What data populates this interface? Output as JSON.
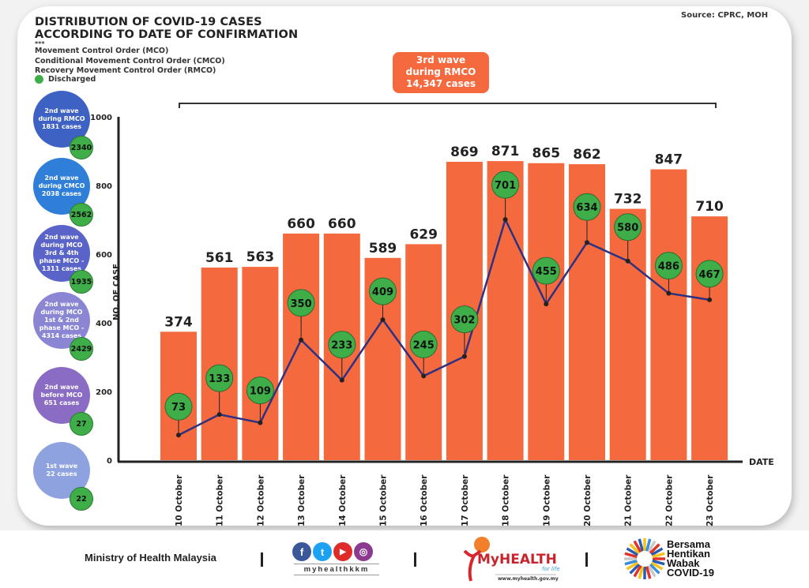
{
  "header": {
    "title_line1": "DISTRIBUTION OF COVID-19 CASES",
    "title_line2": "ACCORDING TO DATE OF CONFIRMATION",
    "stars": "***",
    "legend_lines": [
      "Movement Control Order (MCO)",
      "Conditional Movement Control Order (CMCO)",
      "Recovery Movement Control Order (RMCO)"
    ],
    "discharged_label": "Discharged",
    "source": "Source: CPRC, MOH"
  },
  "colors": {
    "bar": "#f46a3e",
    "discharged": "#3fae49",
    "line": "#2e3180",
    "axis": "#222222"
  },
  "wave_box": {
    "line1": "3rd wave",
    "line2": "during RMCO",
    "line3": "14,347 cases"
  },
  "side_bubbles": [
    {
      "lines": [
        "2nd wave",
        "during RMCO",
        "1831 cases"
      ],
      "discharged": "2340",
      "color": "#3d62c4"
    },
    {
      "lines": [
        "2nd wave",
        "during CMCO",
        "2038 cases"
      ],
      "discharged": "2562",
      "color": "#2f7fd8"
    },
    {
      "lines": [
        "2nd wave",
        "during MCO",
        "3rd & 4th",
        "phase MCO -",
        "1311 cases"
      ],
      "discharged": "1935",
      "color": "#5a64c8"
    },
    {
      "lines": [
        "2nd wave",
        "during MCO",
        "1st & 2nd",
        "phase MCO -",
        "4314 cases"
      ],
      "discharged": "2429",
      "color": "#8a86d4"
    },
    {
      "lines": [
        "2nd wave",
        "before MCO",
        "651 cases"
      ],
      "discharged": "27",
      "color": "#8a6cc4"
    },
    {
      "lines": [
        "1st wave",
        "22 cases"
      ],
      "discharged": "22",
      "color": "#8ea2e0"
    }
  ],
  "chart_data": {
    "type": "bar",
    "title": "DISTRIBUTION OF COVID-19 CASES ACCORDING TO DATE OF CONFIRMATION",
    "xlabel": "DATE",
    "ylabel": "NO. OF CASE",
    "ylim": [
      0,
      1000
    ],
    "yticks": [
      0,
      200,
      400,
      600,
      800,
      1000
    ],
    "categories": [
      "10 October",
      "11 October",
      "12 October",
      "13 October",
      "14 October",
      "15 October",
      "16 October",
      "17 October",
      "18 October",
      "19 October",
      "20 October",
      "21 October",
      "22 October",
      "23 October"
    ],
    "series": [
      {
        "name": "Cases",
        "type": "bar",
        "values": [
          374,
          561,
          563,
          660,
          660,
          589,
          629,
          869,
          871,
          865,
          862,
          732,
          847,
          710
        ]
      },
      {
        "name": "Discharged",
        "type": "line",
        "values": [
          73,
          133,
          109,
          350,
          233,
          409,
          245,
          302,
          701,
          455,
          634,
          580,
          486,
          467
        ]
      }
    ],
    "grid": false,
    "legend": "top-left"
  },
  "footer": {
    "ministry": "Ministry of Health Malaysia",
    "social_handle": "myhealthkkm",
    "social_icons": [
      "f",
      "t",
      "▶",
      "◎"
    ],
    "myhealth_brand": "MyHEALTH",
    "myhealth_tagline": "for life",
    "myhealth_url": "www.myhealth.gov.my",
    "bersama_lines": [
      "Bersama",
      "Hentikan",
      "Wabak",
      "COVID-19"
    ]
  }
}
